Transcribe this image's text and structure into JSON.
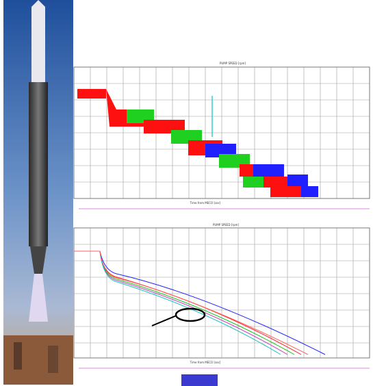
{
  "top_chart": {
    "title": "PUMP SPEED [rpm]",
    "x_label": "Time from MECO [sec]"
  },
  "bottom_chart": {
    "title": "PUMP SPEED [rpm]",
    "x_label": "Time from MECO [sec]"
  }
}
